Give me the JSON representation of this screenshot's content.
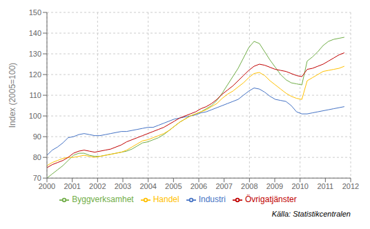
{
  "chart_data": {
    "type": "line",
    "ylabel": "Index (2005=100)",
    "annotations": [
      "Källa: Statistikcentralen"
    ],
    "xlim": [
      2000,
      2012
    ],
    "xticks": [
      2000,
      2001,
      2002,
      2003,
      2004,
      2005,
      2006,
      2007,
      2008,
      2009,
      2010,
      2011,
      2012
    ],
    "ylim": [
      70,
      150
    ],
    "yticks": [
      70,
      80,
      90,
      100,
      110,
      120,
      130,
      140,
      150
    ],
    "grid": true,
    "legend": "bottom",
    "x": [
      2000,
      2000.209821,
      2000.419643,
      2000.629464,
      2000.839286,
      2001.049107,
      2001.258929,
      2001.46875,
      2001.678571,
      2001.888393,
      2002.098214,
      2002.308036,
      2002.517857,
      2002.727679,
      2002.9375,
      2003.147321,
      2003.357143,
      2003.566964,
      2003.776786,
      2003.986607,
      2004.196429,
      2004.40625,
      2004.616071,
      2004.825893,
      2005.035714,
      2005.245536,
      2005.455357,
      2005.665179,
      2005.875,
      2006.084821,
      2006.294643,
      2006.504464,
      2006.714286,
      2006.924107,
      2007.133929,
      2007.34375,
      2007.553571,
      2007.763393,
      2007.973214,
      2008.183036,
      2008.392857,
      2008.602679,
      2008.8125,
      2009.022321,
      2009.232143,
      2009.441964,
      2009.651786,
      2009.861607,
      2010.071429,
      2010.28125,
      2010.491071,
      2010.700893,
      2010.910714,
      2011.120536,
      2011.330357,
      2011.540179,
      2011.75
    ],
    "series": [
      {
        "name": "Industri",
        "color": "#4472C4",
        "values": [
          81.0,
          83.5,
          85.0,
          87.0,
          89.5,
          90.0,
          91.0,
          91.5,
          91.0,
          90.5,
          90.5,
          91.0,
          91.5,
          92.0,
          92.5,
          92.5,
          93.0,
          93.5,
          94.0,
          94.5,
          94.5,
          95.5,
          96.5,
          97.5,
          98.5,
          99.0,
          99.5,
          100.0,
          100.5,
          101.5,
          102.0,
          103.0,
          104.0,
          105.0,
          106.0,
          107.0,
          108.0,
          110.0,
          112.0,
          113.5,
          113.0,
          111.5,
          109.5,
          108.0,
          107.5,
          107.0,
          105.0,
          102.0,
          101.0,
          101.0,
          101.5,
          102.0,
          102.5,
          103.0,
          103.5,
          104.0,
          104.5
        ]
      },
      {
        "name": "Byggverksamhet",
        "color": "#70AD47",
        "values": [
          70.0,
          72.0,
          74.0,
          76.0,
          78.5,
          81.0,
          82.0,
          82.0,
          81.0,
          80.5,
          80.5,
          81.0,
          81.5,
          82.0,
          82.5,
          83.0,
          84.0,
          85.5,
          87.0,
          87.5,
          88.5,
          89.5,
          91.0,
          93.0,
          95.0,
          97.0,
          98.5,
          100.0,
          101.0,
          102.0,
          103.5,
          105.0,
          107.5,
          111.0,
          115.0,
          119.0,
          123.0,
          128.0,
          133.0,
          136.0,
          135.0,
          131.0,
          127.0,
          123.5,
          120.0,
          117.5,
          116.0,
          115.5,
          115.0,
          126.5,
          128.5,
          131.0,
          134.0,
          136.0,
          137.0,
          137.5,
          138.0
        ]
      },
      {
        "name": "Handel",
        "color": "#FFC000",
        "values": [
          76.0,
          77.5,
          78.5,
          79.5,
          80.0,
          80.0,
          80.5,
          81.0,
          80.5,
          80.0,
          80.5,
          81.0,
          81.5,
          82.0,
          82.5,
          83.5,
          85.0,
          86.5,
          88.0,
          88.5,
          89.5,
          90.5,
          91.5,
          93.0,
          95.0,
          97.0,
          98.5,
          100.0,
          101.0,
          102.0,
          103.0,
          104.5,
          106.0,
          108.5,
          110.5,
          112.0,
          114.0,
          116.0,
          118.5,
          120.5,
          121.0,
          119.5,
          117.0,
          115.0,
          113.0,
          111.0,
          109.5,
          108.5,
          108.0,
          117.0,
          118.5,
          120.0,
          121.5,
          122.0,
          122.5,
          123.0,
          124.0
        ]
      },
      {
        "name": "Övrigatjänster",
        "color": "#C00000",
        "values": [
          75.0,
          76.5,
          77.5,
          78.5,
          80.0,
          82.0,
          83.0,
          83.5,
          83.0,
          82.5,
          83.0,
          83.5,
          84.0,
          85.0,
          86.0,
          87.5,
          88.5,
          89.5,
          90.5,
          91.5,
          92.5,
          93.5,
          94.5,
          96.0,
          97.5,
          99.0,
          100.0,
          101.0,
          102.0,
          103.5,
          104.5,
          106.0,
          108.0,
          110.5,
          112.5,
          114.5,
          117.0,
          119.5,
          122.0,
          124.0,
          125.0,
          124.5,
          123.5,
          122.5,
          122.0,
          121.5,
          120.5,
          119.5,
          119.0,
          122.5,
          123.0,
          124.0,
          125.0,
          126.5,
          128.0,
          129.5,
          130.5
        ]
      }
    ]
  }
}
